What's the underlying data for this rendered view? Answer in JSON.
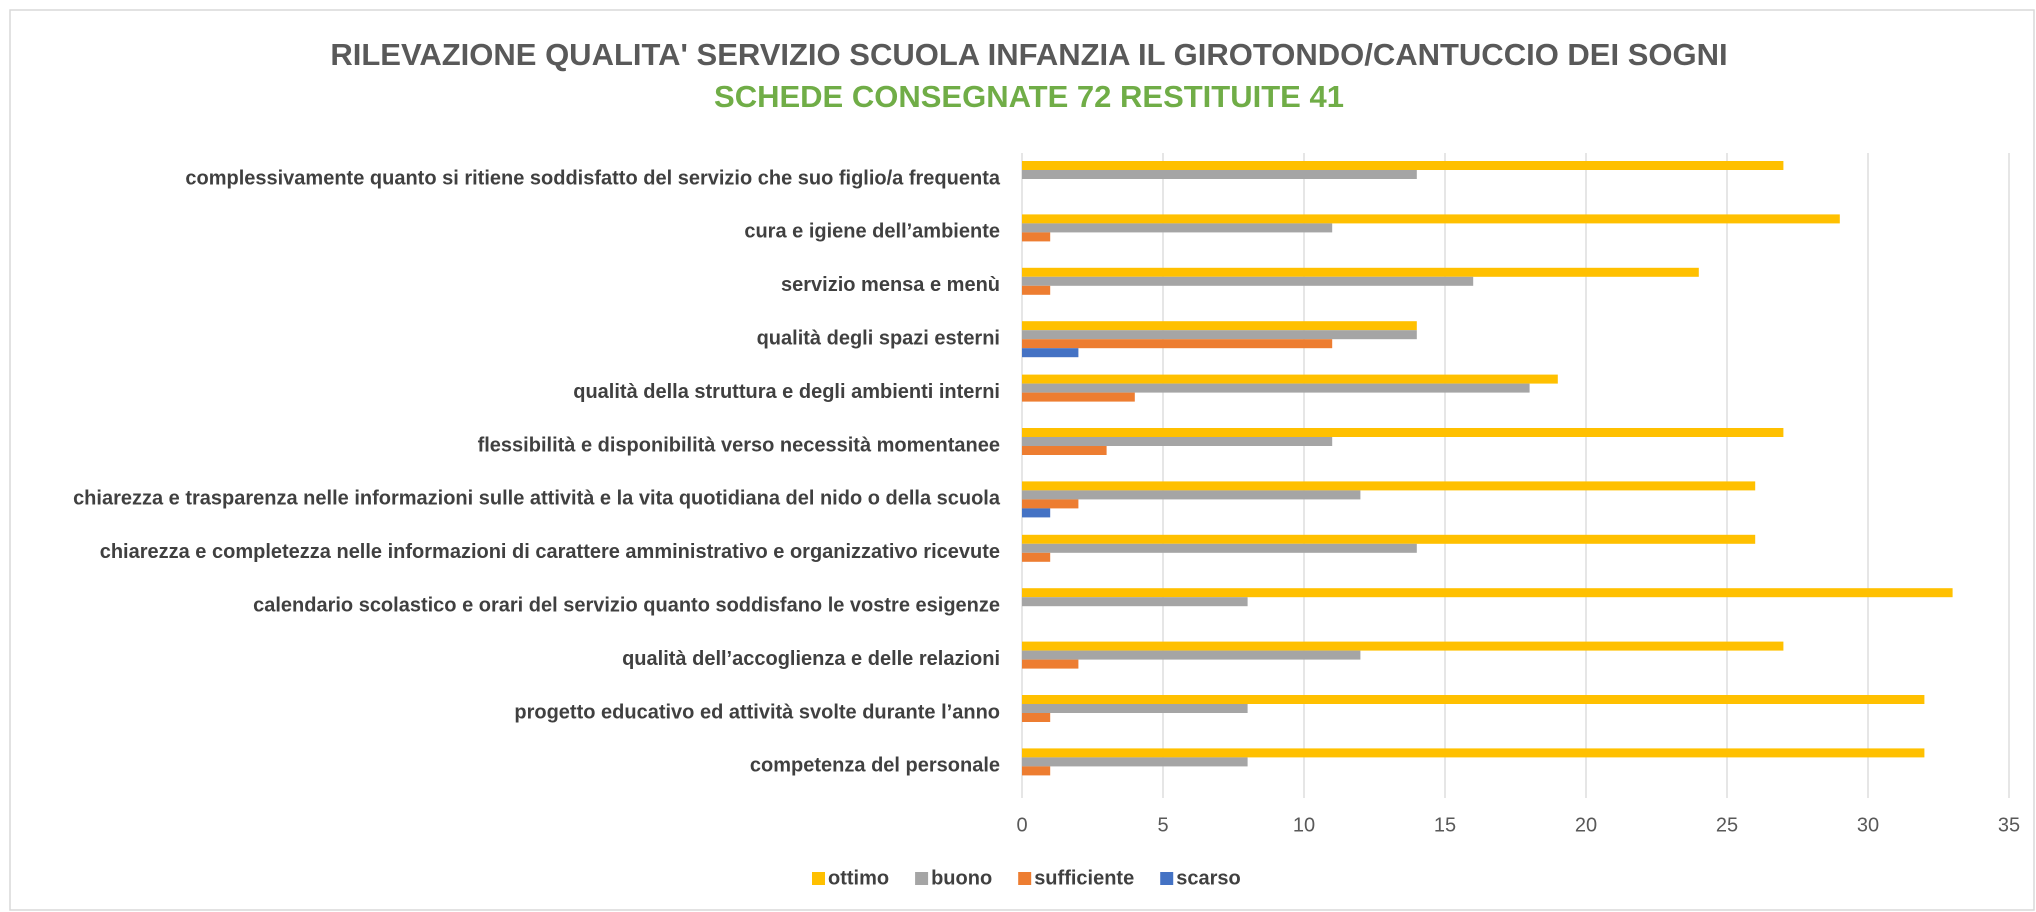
{
  "chart_data": {
    "type": "bar",
    "orientation": "horizontal",
    "title": "RILEVAZIONE QUALITA' SERVIZIO SCUOLA INFANZIA IL GIROTONDO/CANTUCCIO DEI SOGNI",
    "subtitle": "SCHEDE CONSEGNATE 72 RESTITUITE 41",
    "categories": [
      "complessivamente quanto si ritiene soddisfatto del servizio che suo figlio/a frequenta",
      "cura e igiene dell’ambiente",
      "servizio mensa e menù",
      "qualità degli spazi esterni",
      "qualità della struttura e degli ambienti interni",
      "flessibilità e disponibilità verso necessità momentanee",
      "chiarezza e trasparenza nelle informazioni sulle attività e la vita quotidiana del nido o della scuola",
      "chiarezza e completezza nelle informazioni di carattere amministrativo e organizzativo ricevute",
      "calendario scolastico e orari del servizio quanto soddisfano le vostre esigenze",
      "qualità dell’accoglienza e delle relazioni",
      "progetto educativo ed attività svolte durante l’anno",
      "competenza del personale"
    ],
    "series": [
      {
        "name": "ottimo",
        "color": "#FFC000",
        "values": [
          27,
          29,
          24,
          14,
          19,
          27,
          26,
          26,
          33,
          27,
          32,
          32
        ]
      },
      {
        "name": "buono",
        "color": "#A5A5A5",
        "values": [
          14,
          11,
          16,
          14,
          18,
          11,
          12,
          14,
          8,
          12,
          8,
          8
        ]
      },
      {
        "name": "sufficiente",
        "color": "#ED7D31",
        "values": [
          0,
          1,
          1,
          11,
          4,
          3,
          2,
          1,
          0,
          2,
          1,
          1
        ]
      },
      {
        "name": "scarso",
        "color": "#4472C4",
        "values": [
          0,
          0,
          0,
          2,
          0,
          0,
          1,
          0,
          0,
          0,
          0,
          0
        ]
      }
    ],
    "xlim": [
      0,
      35
    ],
    "xticks": [
      0,
      5,
      10,
      15,
      20,
      25,
      30,
      35
    ],
    "grid": true,
    "legend": "bottom"
  }
}
